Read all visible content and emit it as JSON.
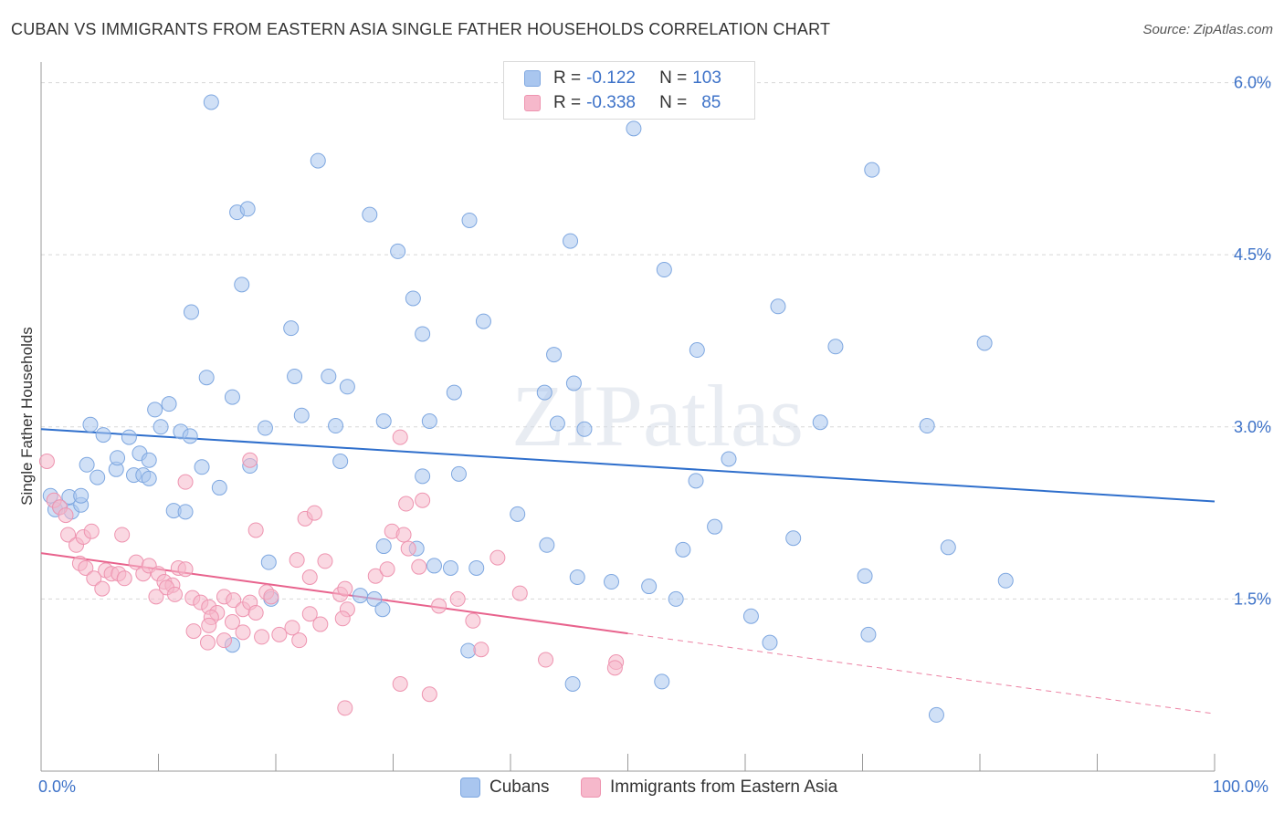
{
  "title": "CUBAN VS IMMIGRANTS FROM EASTERN ASIA SINGLE FATHER HOUSEHOLDS CORRELATION CHART",
  "source": "Source: ZipAtlas.com",
  "watermark": "ZIPatlas",
  "legend_top": {
    "rows": [
      {
        "r_label": "R = ",
        "r_value": "-0.122",
        "n_label": "N = ",
        "n_value": "103"
      },
      {
        "r_label": "R = ",
        "r_value": "-0.338",
        "n_label": "N = ",
        "n_value": "85"
      }
    ]
  },
  "colors": {
    "cubans_fill": "#a9c6ef",
    "cubans_stroke": "#7ea7e0",
    "cubans_line": "#2f6fcc",
    "eastasia_fill": "#f6b8cb",
    "eastasia_stroke": "#ee94b0",
    "eastasia_line": "#e8638d",
    "tick_text": "#3d72c8",
    "grid": "#d8d8d8"
  },
  "chart_data": {
    "type": "scatter",
    "title": "CUBAN VS IMMIGRANTS FROM EASTERN ASIA SINGLE FATHER HOUSEHOLDS CORRELATION CHART",
    "xlabel": "",
    "ylabel": "Single Father Households",
    "xlim": [
      0,
      100
    ],
    "ylim": [
      0,
      6.1
    ],
    "x_tick_labels": [
      "0.0%",
      "100.0%"
    ],
    "y_ticks": [
      1.5,
      3.0,
      4.5,
      6.0
    ],
    "y_tick_labels": [
      "1.5%",
      "3.0%",
      "4.5%",
      "6.0%"
    ],
    "grid": true,
    "legend_placement": "bottom",
    "series": [
      {
        "name": "Cubans",
        "trend": {
          "x0": 0,
          "y0": 2.98,
          "x1": 100,
          "y1": 2.35
        },
        "points": [
          [
            14.5,
            5.83
          ],
          [
            50.5,
            5.6
          ],
          [
            23.6,
            5.32
          ],
          [
            70.8,
            5.24
          ],
          [
            16.7,
            4.87
          ],
          [
            17.6,
            4.9
          ],
          [
            28,
            4.85
          ],
          [
            36.5,
            4.8
          ],
          [
            45.1,
            4.62
          ],
          [
            30.4,
            4.53
          ],
          [
            53.1,
            4.37
          ],
          [
            17.1,
            4.24
          ],
          [
            31.7,
            4.12
          ],
          [
            12.8,
            4.0
          ],
          [
            62.8,
            4.05
          ],
          [
            21.3,
            3.86
          ],
          [
            37.7,
            3.92
          ],
          [
            32.5,
            3.81
          ],
          [
            55.9,
            3.67
          ],
          [
            67.7,
            3.7
          ],
          [
            80.4,
            3.73
          ],
          [
            43.7,
            3.63
          ],
          [
            14.1,
            3.43
          ],
          [
            21.6,
            3.44
          ],
          [
            24.5,
            3.44
          ],
          [
            26.1,
            3.35
          ],
          [
            35.2,
            3.3
          ],
          [
            42.9,
            3.3
          ],
          [
            45.4,
            3.38
          ],
          [
            10.9,
            3.2
          ],
          [
            9.7,
            3.15
          ],
          [
            16.3,
            3.26
          ],
          [
            22.2,
            3.1
          ],
          [
            29.2,
            3.05
          ],
          [
            33.1,
            3.05
          ],
          [
            44,
            3.03
          ],
          [
            46.3,
            2.98
          ],
          [
            66.4,
            3.04
          ],
          [
            75.5,
            3.01
          ],
          [
            4.2,
            3.02
          ],
          [
            5.3,
            2.93
          ],
          [
            7.5,
            2.91
          ],
          [
            10.2,
            3.0
          ],
          [
            11.9,
            2.96
          ],
          [
            12.7,
            2.92
          ],
          [
            19.1,
            2.99
          ],
          [
            25.1,
            3.01
          ],
          [
            32.5,
            2.57
          ],
          [
            3.9,
            2.67
          ],
          [
            6.4,
            2.63
          ],
          [
            6.5,
            2.73
          ],
          [
            8.4,
            2.77
          ],
          [
            9.2,
            2.71
          ],
          [
            13.7,
            2.65
          ],
          [
            17.8,
            2.66
          ],
          [
            25.5,
            2.7
          ],
          [
            35.6,
            2.59
          ],
          [
            58.6,
            2.72
          ],
          [
            4.8,
            2.56
          ],
          [
            7.9,
            2.58
          ],
          [
            8.7,
            2.58
          ],
          [
            9.2,
            2.55
          ],
          [
            15.2,
            2.47
          ],
          [
            55.8,
            2.53
          ],
          [
            0.8,
            2.4
          ],
          [
            1.2,
            2.28
          ],
          [
            1.6,
            2.3
          ],
          [
            2.4,
            2.39
          ],
          [
            2.6,
            2.26
          ],
          [
            3.4,
            2.32
          ],
          [
            3.4,
            2.4
          ],
          [
            11.3,
            2.27
          ],
          [
            12.3,
            2.26
          ],
          [
            40.6,
            2.24
          ],
          [
            57.4,
            2.13
          ],
          [
            64.1,
            2.03
          ],
          [
            19.4,
            1.82
          ],
          [
            29.2,
            1.96
          ],
          [
            32,
            1.94
          ],
          [
            33.5,
            1.79
          ],
          [
            34.9,
            1.77
          ],
          [
            37.1,
            1.77
          ],
          [
            43.1,
            1.97
          ],
          [
            54.7,
            1.93
          ],
          [
            77.3,
            1.95
          ],
          [
            45.7,
            1.69
          ],
          [
            48.6,
            1.65
          ],
          [
            51.8,
            1.61
          ],
          [
            70.2,
            1.7
          ],
          [
            82.2,
            1.66
          ],
          [
            54.1,
            1.5
          ],
          [
            19.6,
            1.5
          ],
          [
            27.2,
            1.53
          ],
          [
            28.4,
            1.5
          ],
          [
            29.1,
            1.41
          ],
          [
            60.5,
            1.35
          ],
          [
            70.5,
            1.19
          ],
          [
            36.4,
            1.05
          ],
          [
            62.1,
            1.12
          ],
          [
            16.3,
            1.1
          ],
          [
            52.9,
            0.78
          ],
          [
            45.3,
            0.76
          ],
          [
            76.3,
            0.49
          ]
        ]
      },
      {
        "name": "Immigrants from Eastern Asia",
        "trend": {
          "x0": 0,
          "y0": 1.9,
          "x1": 50,
          "y1": 1.2,
          "dash_x1": 100,
          "dash_y1": 0.5
        },
        "points": [
          [
            0.5,
            2.7
          ],
          [
            1.1,
            2.36
          ],
          [
            1.6,
            2.3
          ],
          [
            2.1,
            2.23
          ],
          [
            2.3,
            2.06
          ],
          [
            3,
            1.97
          ],
          [
            3.6,
            2.04
          ],
          [
            4.3,
            2.09
          ],
          [
            5.5,
            1.75
          ],
          [
            6.9,
            2.06
          ],
          [
            3.3,
            1.81
          ],
          [
            3.8,
            1.77
          ],
          [
            4.5,
            1.68
          ],
          [
            5.2,
            1.59
          ],
          [
            6,
            1.72
          ],
          [
            6.6,
            1.72
          ],
          [
            7.1,
            1.68
          ],
          [
            8.1,
            1.82
          ],
          [
            8.7,
            1.72
          ],
          [
            9.2,
            1.79
          ],
          [
            10,
            1.72
          ],
          [
            10.5,
            1.65
          ],
          [
            11.2,
            1.62
          ],
          [
            11.7,
            1.77
          ],
          [
            12.3,
            1.76
          ],
          [
            9.8,
            1.52
          ],
          [
            10.7,
            1.6
          ],
          [
            11.4,
            1.54
          ],
          [
            12.9,
            1.51
          ],
          [
            13.6,
            1.47
          ],
          [
            14.3,
            1.43
          ],
          [
            15,
            1.38
          ],
          [
            15.6,
            1.52
          ],
          [
            16.4,
            1.49
          ],
          [
            17.2,
            1.41
          ],
          [
            17.8,
            1.47
          ],
          [
            18.3,
            1.38
          ],
          [
            19.2,
            1.56
          ],
          [
            19.6,
            1.52
          ],
          [
            14.5,
            1.34
          ],
          [
            14.3,
            1.27
          ],
          [
            13,
            1.22
          ],
          [
            14.2,
            1.12
          ],
          [
            15.6,
            1.14
          ],
          [
            16.3,
            1.3
          ],
          [
            17.2,
            1.21
          ],
          [
            18.8,
            1.17
          ],
          [
            20.3,
            1.19
          ],
          [
            21.4,
            1.25
          ],
          [
            22,
            1.14
          ],
          [
            12.3,
            2.52
          ],
          [
            17.8,
            2.71
          ],
          [
            18.3,
            2.1
          ],
          [
            22.5,
            2.2
          ],
          [
            23.3,
            2.25
          ],
          [
            24.2,
            1.83
          ],
          [
            21.8,
            1.84
          ],
          [
            22.9,
            1.69
          ],
          [
            25.5,
            1.54
          ],
          [
            25.9,
            1.59
          ],
          [
            26.1,
            1.41
          ],
          [
            25.7,
            1.33
          ],
          [
            22.9,
            1.37
          ],
          [
            23.8,
            1.28
          ],
          [
            30.6,
            2.91
          ],
          [
            31.1,
            2.33
          ],
          [
            32.5,
            2.36
          ],
          [
            31.3,
            1.94
          ],
          [
            29.9,
            2.09
          ],
          [
            30.9,
            2.06
          ],
          [
            28.5,
            1.7
          ],
          [
            29.5,
            1.76
          ],
          [
            32.2,
            1.78
          ],
          [
            35.5,
            1.5
          ],
          [
            33.9,
            1.44
          ],
          [
            36.8,
            1.31
          ],
          [
            38.9,
            1.86
          ],
          [
            40.8,
            1.55
          ],
          [
            37.5,
            1.06
          ],
          [
            43,
            0.97
          ],
          [
            49,
            0.95
          ],
          [
            48.9,
            0.9
          ],
          [
            30.6,
            0.76
          ],
          [
            33.1,
            0.67
          ],
          [
            25.9,
            0.55
          ]
        ]
      }
    ]
  },
  "bottom_legend": [
    {
      "label": "Cubans"
    },
    {
      "label": "Immigrants from Eastern Asia"
    }
  ]
}
